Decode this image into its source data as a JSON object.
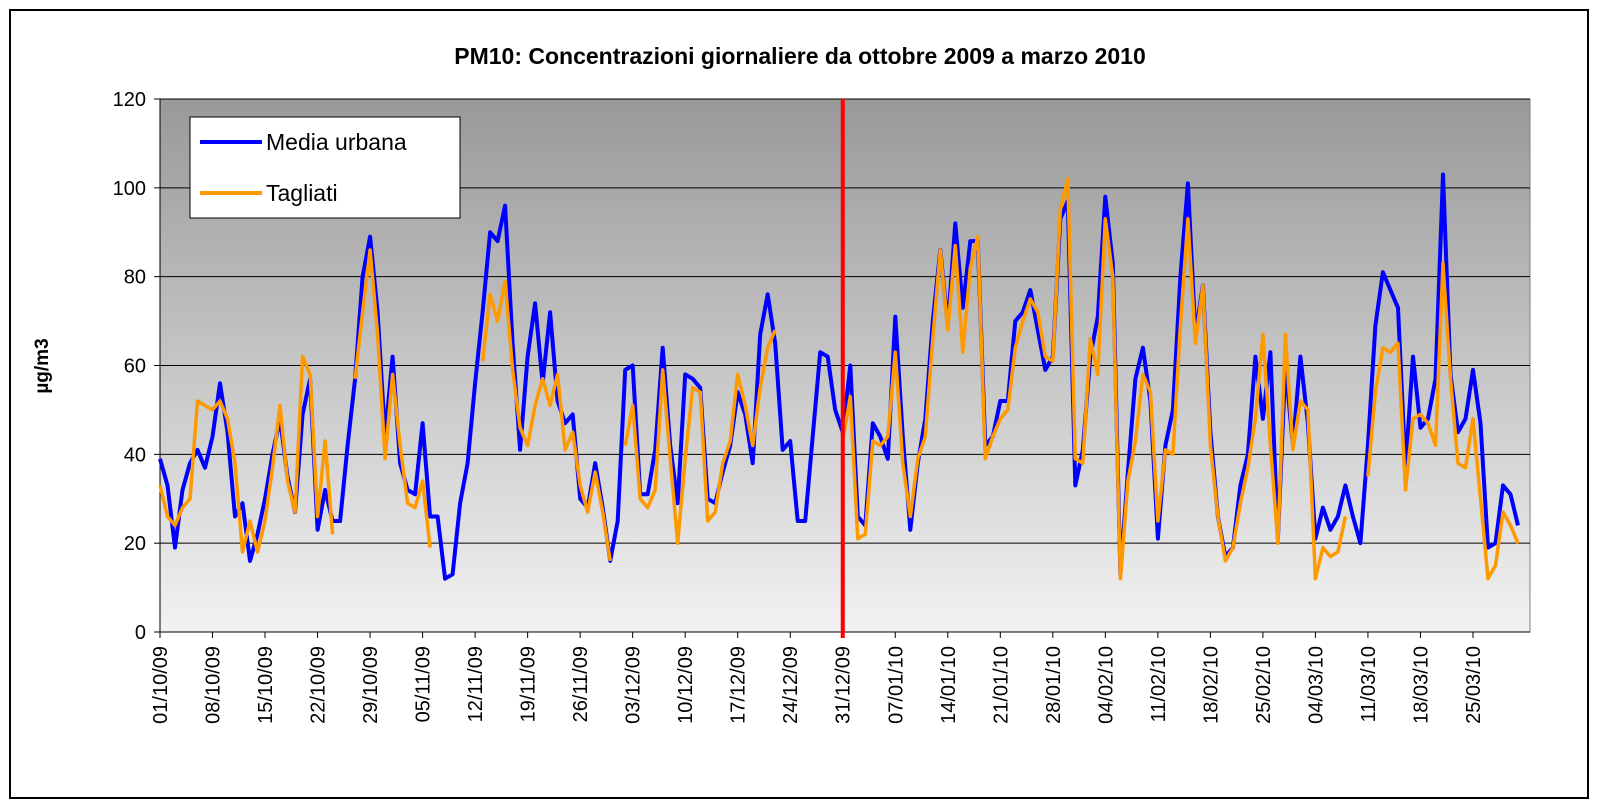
{
  "chart_data": {
    "type": "line",
    "title": "PM10: Concentrazioni giornaliere da ottobre 2009 a marzo 2010",
    "y_label": "µg/m3",
    "categories": [
      "01/10/09",
      null,
      null,
      null,
      null,
      null,
      null,
      "08/10/09",
      null,
      null,
      null,
      null,
      null,
      null,
      "15/10/09",
      null,
      null,
      null,
      null,
      null,
      null,
      "22/10/09",
      null,
      null,
      null,
      null,
      null,
      null,
      "29/10/09",
      null,
      null,
      null,
      null,
      null,
      null,
      "05/11/09",
      null,
      null,
      null,
      null,
      null,
      null,
      "12/11/09",
      null,
      null,
      null,
      null,
      null,
      null,
      "19/11/09",
      null,
      null,
      null,
      null,
      null,
      null,
      "26/11/09",
      null,
      null,
      null,
      null,
      null,
      null,
      "03/12/09",
      null,
      null,
      null,
      null,
      null,
      null,
      "10/12/09",
      null,
      null,
      null,
      null,
      null,
      null,
      "17/12/09",
      null,
      null,
      null,
      null,
      null,
      null,
      "24/12/09",
      null,
      null,
      null,
      null,
      null,
      null,
      "31/12/09",
      null,
      null,
      null,
      null,
      null,
      null,
      "07/01/10",
      null,
      null,
      null,
      null,
      null,
      null,
      "14/01/10",
      null,
      null,
      null,
      null,
      null,
      null,
      "21/01/10",
      null,
      null,
      null,
      null,
      null,
      null,
      "28/01/10",
      null,
      null,
      null,
      null,
      null,
      null,
      "04/02/10",
      null,
      null,
      null,
      null,
      null,
      null,
      "11/02/10",
      null,
      null,
      null,
      null,
      null,
      null,
      "18/02/10",
      null,
      null,
      null,
      null,
      null,
      null,
      "25/02/10",
      null,
      null,
      null,
      null,
      null,
      null,
      "04/03/10",
      null,
      null,
      null,
      null,
      null,
      null,
      "11/03/10",
      null,
      null,
      null,
      null,
      null,
      null,
      "18/03/10",
      null,
      null,
      null,
      null,
      null,
      null,
      "25/03/10",
      null,
      null,
      null,
      null,
      null,
      null
    ],
    "series": [
      {
        "name": "Media urbana",
        "color": "#0000ff",
        "values": [
          39,
          33,
          19,
          32,
          38,
          41,
          37,
          44,
          56,
          45,
          26,
          29,
          16,
          22,
          30,
          40,
          48,
          35,
          27,
          49,
          57,
          23,
          32,
          25,
          25,
          42,
          57,
          80,
          89,
          72,
          44,
          62,
          38,
          32,
          31,
          47,
          26,
          26,
          12,
          13,
          29,
          38,
          56,
          72,
          90,
          88,
          96,
          65,
          41,
          62,
          74,
          56,
          72,
          52,
          47,
          49,
          30,
          28,
          38,
          28,
          16,
          25,
          59,
          60,
          31,
          31,
          41,
          64,
          42,
          29,
          58,
          57,
          55,
          30,
          29,
          36,
          42,
          54,
          49,
          38,
          67,
          76,
          65,
          41,
          43,
          25,
          25,
          44,
          63,
          62,
          50,
          45,
          60,
          26,
          24,
          47,
          44,
          39,
          71,
          44,
          23,
          38,
          48,
          70,
          86,
          69,
          92,
          73,
          88,
          88,
          42,
          44,
          52,
          52,
          70,
          72,
          77,
          68,
          59,
          62,
          93,
          97,
          33,
          41,
          62,
          71,
          98,
          83,
          13,
          36,
          57,
          64,
          52,
          21,
          42,
          50,
          80,
          101,
          67,
          78,
          45,
          26,
          17,
          19,
          33,
          40,
          62,
          48,
          63,
          21,
          60,
          42,
          62,
          47,
          21,
          28,
          23,
          26,
          33,
          26,
          20,
          42,
          69,
          81,
          77,
          73,
          37,
          62,
          46,
          48,
          57,
          103,
          58,
          45,
          48,
          59,
          47,
          19,
          20,
          33,
          31,
          24
        ]
      },
      {
        "name": "Tagliati",
        "color": "#ff9900",
        "values": [
          33,
          26,
          24,
          28,
          30,
          52,
          51,
          50,
          52,
          48,
          38,
          18,
          25,
          18,
          25,
          37,
          51,
          34,
          27,
          62,
          58,
          26,
          43,
          22,
          null,
          null,
          57,
          72,
          86,
          67,
          39,
          58,
          42,
          29,
          28,
          34,
          19,
          null,
          null,
          null,
          null,
          null,
          null,
          61,
          76,
          70,
          79,
          59,
          46,
          42,
          51,
          57,
          51,
          58,
          41,
          45,
          33,
          27,
          36,
          27,
          16,
          null,
          42,
          51,
          30,
          28,
          32,
          59,
          39,
          20,
          39,
          55,
          54,
          25,
          27,
          38,
          43,
          58,
          51,
          42,
          55,
          64,
          68,
          null,
          null,
          null,
          null,
          null,
          null,
          null,
          null,
          43,
          53,
          21,
          22,
          43,
          42,
          44,
          63,
          38,
          26,
          39,
          44,
          66,
          86,
          68,
          87,
          63,
          82,
          89,
          39,
          44,
          48,
          50,
          64,
          70,
          75,
          72,
          62,
          61,
          95,
          102,
          39,
          38,
          66,
          58,
          93,
          80,
          12,
          34,
          43,
          58,
          54,
          25,
          41,
          40,
          69,
          93,
          65,
          78,
          42,
          26,
          16,
          19,
          29,
          37,
          48,
          67,
          42,
          20,
          67,
          41,
          52,
          50,
          12,
          19,
          17,
          18,
          26,
          null,
          null,
          35,
          54,
          64,
          63,
          65,
          32,
          48,
          49,
          47,
          42,
          83,
          57,
          38,
          37,
          48,
          30,
          12,
          15,
          27,
          24,
          20
        ]
      }
    ],
    "ylim": [
      0,
      120
    ],
    "yticks": [
      0,
      20,
      40,
      60,
      80,
      100,
      120
    ],
    "grid": true,
    "legend": "upper left",
    "vline_at": "31/12/09",
    "vline_color": "#ff0000"
  }
}
